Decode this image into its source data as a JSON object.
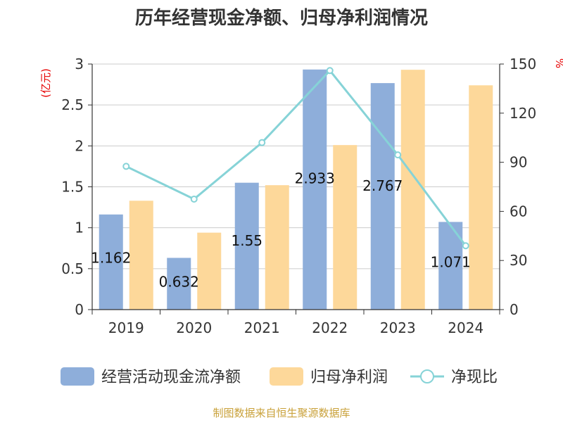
{
  "chart_data": {
    "type": "bar",
    "title": "历年经营现金净额、归母净利润情况",
    "categories": [
      "2019",
      "2020",
      "2021",
      "2022",
      "2023",
      "2024"
    ],
    "series": [
      {
        "name": "经营活动现金流净额",
        "type": "bar",
        "axis": "left",
        "color": "#8EAEDA",
        "values": [
          1.162,
          0.632,
          1.55,
          2.933,
          2.767,
          1.071
        ],
        "labels": [
          "1.162",
          "0.632",
          "1.55",
          "2.933",
          "2.767",
          "1.071"
        ]
      },
      {
        "name": "归母净利润",
        "type": "bar",
        "axis": "left",
        "color": "#FDD89A",
        "values": [
          1.33,
          0.94,
          1.52,
          2.01,
          2.93,
          2.74
        ]
      },
      {
        "name": "净现比",
        "type": "line",
        "axis": "right",
        "color": "#86D3D7",
        "values": [
          87.5,
          67.5,
          102,
          146,
          94.5,
          39
        ]
      }
    ],
    "y_left": {
      "label": "(亿元)",
      "label_color": "#E60000",
      "min": 0,
      "max": 3,
      "ticks": [
        "0",
        "0.5",
        "1",
        "1.5",
        "2",
        "2.5",
        "3"
      ]
    },
    "y_right": {
      "label": "%",
      "label_color": "#E60000",
      "min": 0,
      "max": 150,
      "ticks": [
        "0",
        "30",
        "60",
        "90",
        "120",
        "150"
      ]
    },
    "grid": true,
    "legend_position": "bottom"
  },
  "footer": {
    "source": "制图数据来自恒生聚源数据库",
    "color": "#C9A13A"
  }
}
